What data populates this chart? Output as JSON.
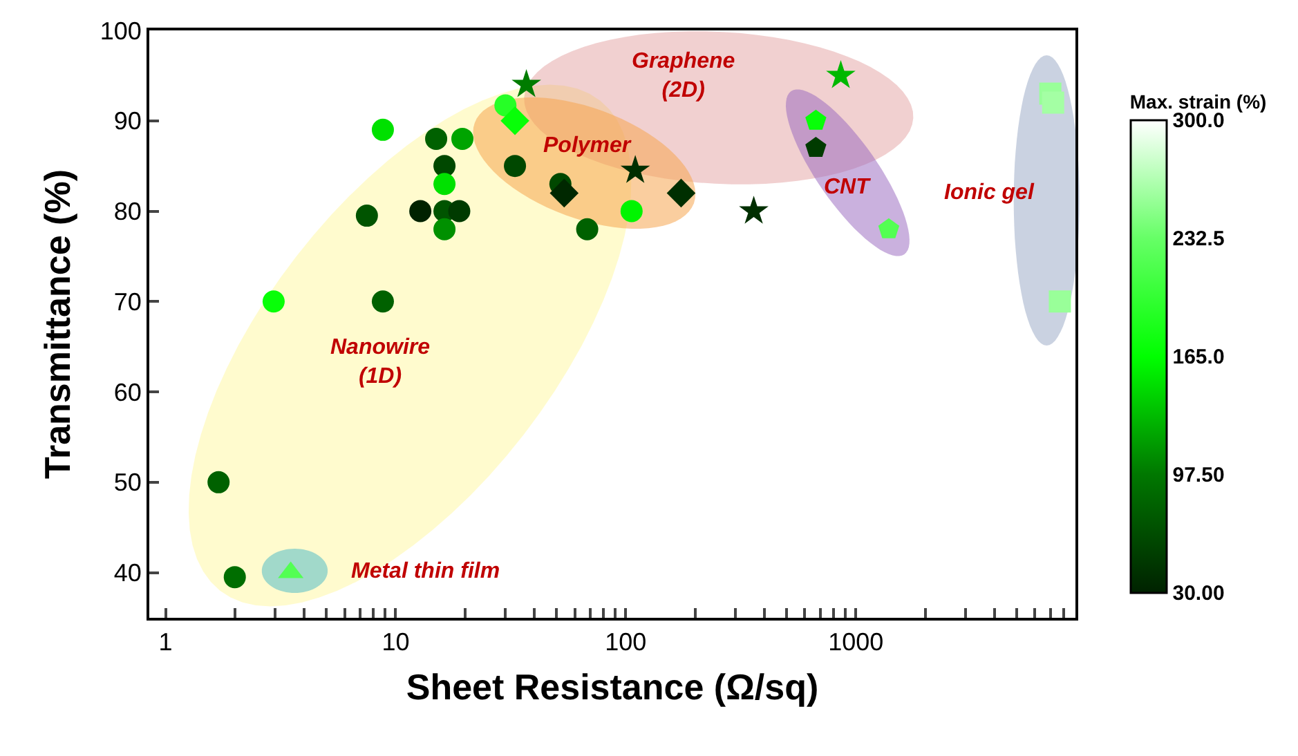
{
  "chart_data": {
    "type": "scatter",
    "xlabel": "Sheet Resistance (Ω/sq)",
    "ylabel": "Transmittance (%)",
    "clabel": "Max. strain (%)",
    "log": "x",
    "xlim": [
      0.85,
      9000
    ],
    "xticks": [
      1,
      {
        "value": 2,
        "label": null
      },
      {
        "value": 3,
        "label": null
      },
      {
        "value": 4,
        "label": null
      },
      {
        "value": 5,
        "label": null
      },
      {
        "value": 6,
        "label": null
      },
      {
        "value": 7,
        "label": null
      },
      {
        "value": 8,
        "label": null
      },
      {
        "value": 9,
        "label": null
      },
      10,
      {
        "value": 20,
        "label": null
      },
      {
        "value": 30,
        "label": null
      },
      {
        "value": 40,
        "label": null
      },
      {
        "value": 50,
        "label": null
      },
      {
        "value": 60,
        "label": null
      },
      {
        "value": 70,
        "label": null
      },
      {
        "value": 80,
        "label": null
      },
      {
        "value": 90,
        "label": null
      },
      100,
      {
        "value": 200,
        "label": null
      },
      {
        "value": 300,
        "label": null
      },
      {
        "value": 400,
        "label": null
      },
      {
        "value": 500,
        "label": null
      },
      {
        "value": 600,
        "label": null
      },
      {
        "value": 700,
        "label": null
      },
      {
        "value": 800,
        "label": null
      },
      {
        "value": 900,
        "label": null
      },
      1000,
      {
        "value": 2000,
        "label": null
      },
      {
        "value": 3000,
        "label": null
      },
      {
        "value": 4000,
        "label": null
      },
      {
        "value": 5000,
        "label": null
      },
      {
        "value": 6000,
        "label": null
      },
      {
        "value": 7000,
        "label": null
      },
      {
        "value": 8000,
        "label": null
      }
    ],
    "ylim": [
      35,
      100
    ],
    "yticks": [
      40,
      50,
      60,
      70,
      80,
      90,
      100
    ],
    "clim": [
      30,
      300
    ],
    "cticks": [
      {
        "value": 30,
        "label": "30.00"
      },
      {
        "value": 97.5,
        "label": "97.50"
      },
      {
        "value": 165,
        "label": "165.0"
      },
      {
        "value": 232.5,
        "label": "232.5"
      },
      {
        "value": 300,
        "label": "300.0"
      }
    ],
    "grid": false,
    "series": [
      {
        "marker": "circle",
        "x": [
          8.8,
          15,
          19.5,
          16.3,
          16.3,
          7.5,
          12.8,
          16.3,
          18.9,
          16.3,
          2.95,
          8.8,
          1.7,
          2,
          30,
          33,
          52,
          68,
          106
        ],
        "values": [
          89,
          88,
          88,
          85,
          83,
          79.5,
          80,
          80,
          80,
          78,
          70,
          70,
          50,
          39.5,
          91.7,
          85,
          83,
          78,
          80
        ],
        "colors": [
          "#00e100",
          "#006100",
          "#00a400",
          "#004800",
          "#00e100",
          "#005400",
          "#002200",
          "#005400",
          "#003b00",
          "#009000",
          "#08ff08",
          "#006100",
          "#006100",
          "#006e00",
          "#26ff26",
          "#004800",
          "#004800",
          "#006100",
          "#00f500"
        ]
      },
      {
        "marker": "star",
        "x": [
          37,
          110,
          360,
          860
        ],
        "values": [
          94,
          84.5,
          80,
          95
        ],
        "colors": [
          "#007c00",
          "#002f00",
          "#002f00",
          "#00b800"
        ]
      },
      {
        "marker": "diamond",
        "x": [
          33,
          54,
          174
        ],
        "values": [
          90,
          82,
          82
        ],
        "colors": [
          "#08ff08",
          "#002800",
          "#002f00"
        ]
      },
      {
        "x": [
          670,
          670,
          1390
        ],
        "values": [
          90,
          87,
          78
        ],
        "colors": [
          "#08ff08",
          "#003b00",
          "#53ff53"
        ]
      },
      {
        "marker": "square",
        "x": [
          7000,
          7200,
          7700
        ],
        "values": [
          93,
          92,
          70
        ],
        "colors": [
          "#99ff99",
          "#a4ffa4",
          "#99ff99"
        ]
      },
      {
        "marker": "triangle",
        "x": [
          3.5
        ],
        "values": [
          40
        ],
        "colors": [
          "#53ff53"
        ]
      }
    ],
    "annotations": [
      "Nanowire\n(1D)",
      "Graphene\n(2D)",
      "Polymer",
      "CNT",
      "Ionic gel",
      "Metal thin film"
    ]
  }
}
